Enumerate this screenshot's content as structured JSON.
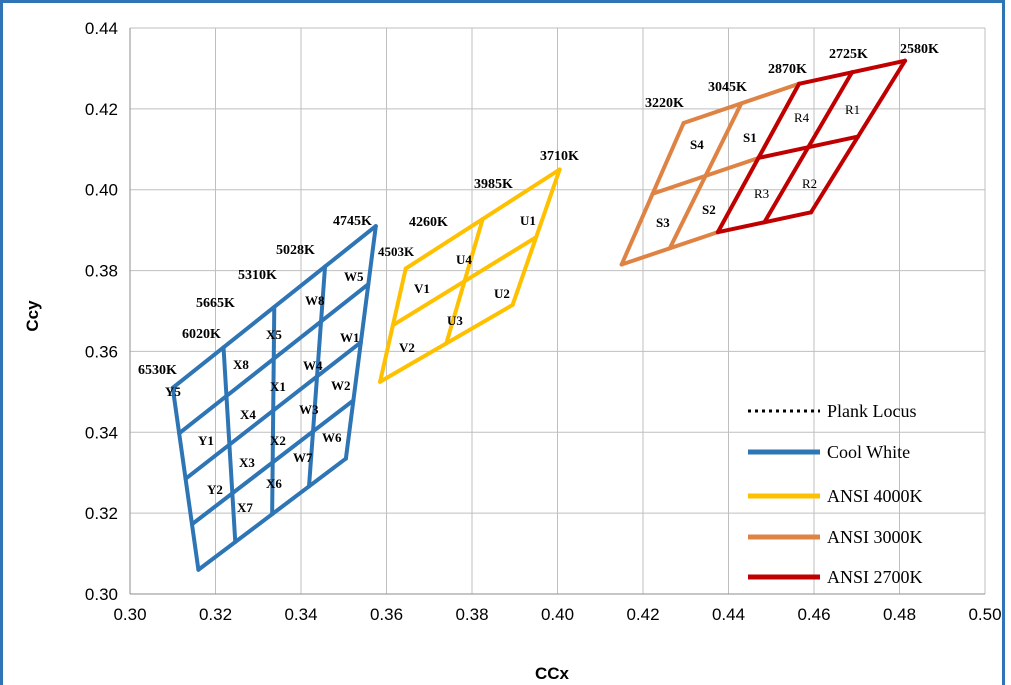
{
  "chart_data": {
    "type": "line",
    "xlabel": "CCx",
    "ylabel": "Ccy",
    "xlim": [
      0.3,
      0.5
    ],
    "ylim": [
      0.3,
      0.44
    ],
    "x_ticks": [
      "0.30",
      "0.32",
      "0.34",
      "0.36",
      "0.38",
      "0.40",
      "0.42",
      "0.44",
      "0.46",
      "0.48",
      "0.50"
    ],
    "y_ticks": [
      "0.30",
      "0.32",
      "0.34",
      "0.36",
      "0.38",
      "0.40",
      "0.42",
      "0.44"
    ],
    "grid": true,
    "legend_position": "bottom-right",
    "series": [
      {
        "name": "Plank Locus",
        "color": "#000000",
        "style": "dotted",
        "points": []
      },
      {
        "name": "Cool White",
        "color": "#2E75B6",
        "style": "solid",
        "points": [
          [
            0.31,
            0.351
          ],
          [
            0.3155,
            0.3585
          ],
          [
            0.3225,
            0.3605
          ],
          [
            0.3295,
            0.3695
          ],
          [
            0.337,
            0.3765
          ],
          [
            0.3475,
            0.3845
          ],
          [
            0.3575,
            0.391
          ],
          [
            0.3545,
            0.3765
          ],
          [
            0.352,
            0.3615
          ],
          [
            0.3505,
            0.349
          ],
          [
            0.3505,
            0.3335
          ],
          [
            0.343,
            0.331
          ],
          [
            0.3365,
            0.324
          ],
          [
            0.3295,
            0.3185
          ],
          [
            0.3235,
            0.312
          ],
          [
            0.316,
            0.306
          ]
        ]
      },
      {
        "name": "ANSI 4000K",
        "color": "#FFC000",
        "style": "solid",
        "points": [
          [
            0.3585,
            0.3525
          ],
          [
            0.3605,
            0.3655
          ],
          [
            0.3645,
            0.3805
          ],
          [
            0.373,
            0.387
          ],
          [
            0.3825,
            0.3945
          ],
          [
            0.3925,
            0.3975
          ],
          [
            0.4005,
            0.405
          ],
          [
            0.395,
            0.387
          ],
          [
            0.3895,
            0.3715
          ],
          [
            0.381,
            0.3665
          ],
          [
            0.3735,
            0.3625
          ],
          [
            0.367,
            0.358
          ]
        ]
      },
      {
        "name": "ANSI 3000K",
        "color": "#DE8344",
        "style": "solid",
        "points": [
          [
            0.415,
            0.3815
          ],
          [
            0.4215,
            0.3985
          ],
          [
            0.4295,
            0.4165
          ],
          [
            0.4425,
            0.4215
          ],
          [
            0.4565,
            0.4262
          ],
          [
            0.4515,
            0.4135
          ],
          [
            0.4475,
            0.4075
          ],
          [
            0.4435,
            0.4005
          ],
          [
            0.4375,
            0.3895
          ],
          [
            0.4285,
            0.386
          ]
        ]
      },
      {
        "name": "ANSI 2700K",
        "color": "#C00000",
        "style": "solid",
        "points": [
          [
            0.4375,
            0.3895
          ],
          [
            0.4475,
            0.4075
          ],
          [
            0.4565,
            0.4262
          ],
          [
            0.4687,
            0.429
          ],
          [
            0.4813,
            0.4319
          ],
          [
            0.4703,
            0.4121
          ],
          [
            0.4593,
            0.3944
          ],
          [
            0.4483,
            0.3918
          ]
        ]
      }
    ],
    "cct_labels": [
      "6530K",
      "6020K",
      "5665K",
      "5310K",
      "5028K",
      "4745K",
      "4503K",
      "4260K",
      "3985K",
      "3710K",
      "3220K",
      "3045K",
      "2870K",
      "2725K",
      "2580K"
    ],
    "bin_labels": {
      "cool_white": [
        "Y5",
        "Y1",
        "Y2",
        "X8",
        "X4",
        "X3",
        "X7",
        "X5",
        "X1",
        "X2",
        "X6",
        "W8",
        "W4",
        "W3",
        "W7",
        "W5",
        "W1",
        "W2",
        "W6"
      ],
      "ansi_4000k": [
        "V1",
        "V2",
        "U4",
        "U3",
        "U1",
        "U2"
      ],
      "ansi_3000k": [
        "S4",
        "S3",
        "S1",
        "S2"
      ],
      "ansi_2700k": [
        "R4",
        "R1",
        "R3",
        "R2"
      ]
    }
  },
  "legend": {
    "items": [
      {
        "label": "Plank Locus",
        "color": "#000000",
        "style": "dotted"
      },
      {
        "label": "Cool White",
        "color": "#2E75B6",
        "style": "solid"
      },
      {
        "label": "ANSI 4000K",
        "color": "#FFC000",
        "style": "solid"
      },
      {
        "label": "ANSI 3000K",
        "color": "#DE8344",
        "style": "solid"
      },
      {
        "label": "ANSI 2700K",
        "color": "#C00000",
        "style": "solid"
      }
    ]
  },
  "colors": {
    "frame": "#2F75B5",
    "grid": "#BFBFBF"
  }
}
